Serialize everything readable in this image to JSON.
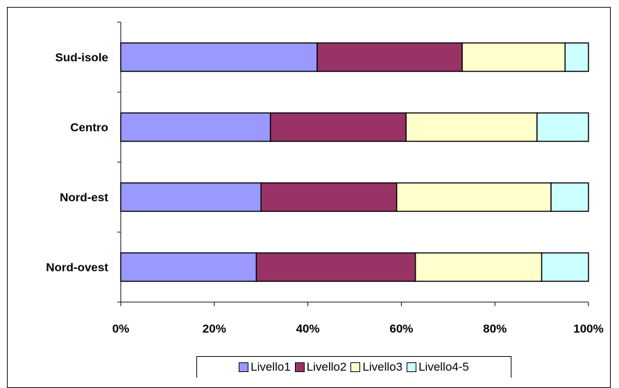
{
  "chart_data": {
    "type": "bar",
    "orientation": "horizontal",
    "stacked": "percent",
    "title": "",
    "xlabel": "",
    "ylabel": "",
    "categories": [
      "Sud-isole",
      "Centro",
      "Nord-est",
      "Nord-ovest"
    ],
    "x_ticks": [
      "0%",
      "20%",
      "40%",
      "60%",
      "80%",
      "100%"
    ],
    "xlim": [
      0,
      100
    ],
    "series": [
      {
        "name": "Livello1",
        "color": "#9999ff",
        "values": [
          42,
          32,
          30,
          29
        ]
      },
      {
        "name": "Livello2",
        "color": "#993366",
        "values": [
          31,
          29,
          29,
          34
        ]
      },
      {
        "name": "Livello3",
        "color": "#ffffcc",
        "values": [
          22,
          28,
          33,
          27
        ]
      },
      {
        "name": "Livello4-5",
        "color": "#ccffff",
        "values": [
          5,
          11,
          8,
          10
        ]
      }
    ],
    "grid": false,
    "legend_position": "bottom"
  }
}
